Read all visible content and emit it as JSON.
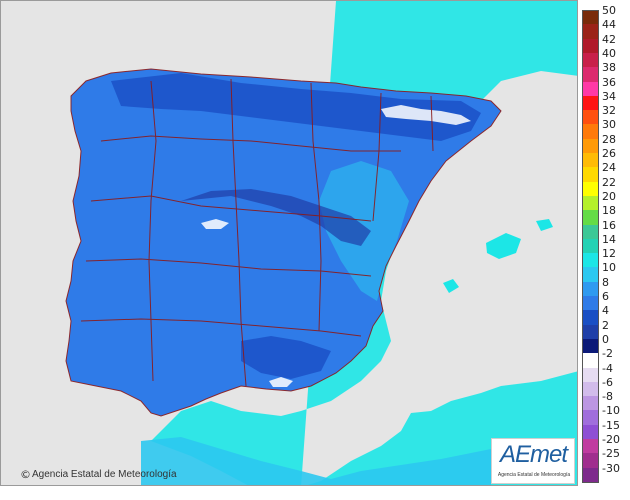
{
  "map": {
    "credit": "Agencia Estatal de Meteorología",
    "logo_text": "AEmet",
    "logo_subtitle": "Agencia Estatal de Meteorología",
    "colors": {
      "background": "#e5e5e5",
      "sea_cyan": "#1ce6e6",
      "land_blue": "#2f7be8",
      "land_dark": "#1a4fc4",
      "deep_blue": "#1f3fa8",
      "borders": "#8b1a1a",
      "sea_teal": "#23d2b4"
    }
  },
  "legend": {
    "items": [
      {
        "label": "50",
        "color": "#7a2b0a"
      },
      {
        "label": "44",
        "color": "#9b2318"
      },
      {
        "label": "42",
        "color": "#b01a2a"
      },
      {
        "label": "40",
        "color": "#c8204a"
      },
      {
        "label": "38",
        "color": "#dc2a6e"
      },
      {
        "label": "36",
        "color": "#ff39a6"
      },
      {
        "label": "34",
        "color": "#ff1414"
      },
      {
        "label": "32",
        "color": "#ff5010"
      },
      {
        "label": "30",
        "color": "#ff7a0a"
      },
      {
        "label": "28",
        "color": "#ff9a08"
      },
      {
        "label": "26",
        "color": "#ffbb06"
      },
      {
        "label": "24",
        "color": "#ffd900"
      },
      {
        "label": "22",
        "color": "#ffff00"
      },
      {
        "label": "20",
        "color": "#b4f02a"
      },
      {
        "label": "18",
        "color": "#64dc46"
      },
      {
        "label": "16",
        "color": "#3cc896"
      },
      {
        "label": "14",
        "color": "#23d2b4"
      },
      {
        "label": "12",
        "color": "#1ce6e6"
      },
      {
        "label": "10",
        "color": "#2cc8f0"
      },
      {
        "label": "8",
        "color": "#2f9af0"
      },
      {
        "label": "6",
        "color": "#2f7be8"
      },
      {
        "label": "4",
        "color": "#1a4fc4"
      },
      {
        "label": "2",
        "color": "#1f3fa8"
      },
      {
        "label": "0",
        "color": "#0c1a78"
      },
      {
        "label": "-2",
        "color": "#ffffff"
      },
      {
        "label": "-4",
        "color": "#e6dcf2"
      },
      {
        "label": "-6",
        "color": "#d2bceb"
      },
      {
        "label": "-8",
        "color": "#bc96e2"
      },
      {
        "label": "-10",
        "color": "#a06edc"
      },
      {
        "label": "-15",
        "color": "#8e4fd4"
      },
      {
        "label": "-20",
        "color": "#c03ca0"
      },
      {
        "label": "-25",
        "color": "#a02e8e"
      },
      {
        "label": "-30",
        "color": "#7e2a8c"
      }
    ]
  }
}
